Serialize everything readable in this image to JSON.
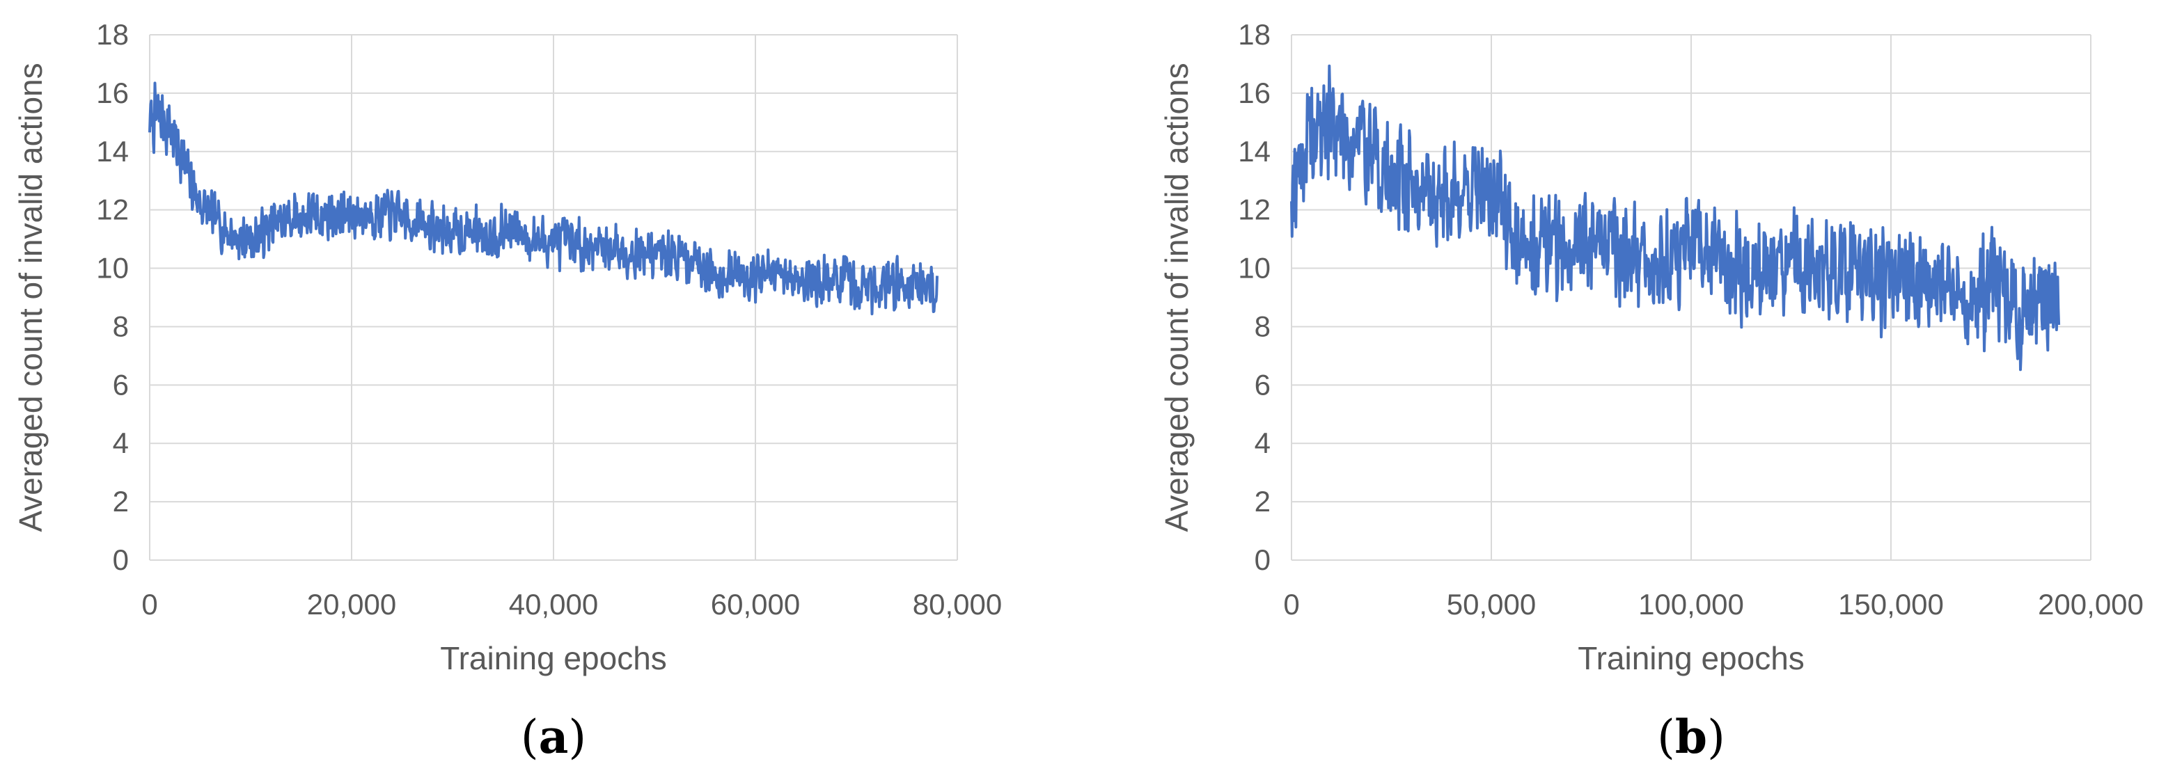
{
  "colors": {
    "series": "#4472C4",
    "grid": "#D9D9D9",
    "text": "#595959"
  },
  "chart_data": [
    {
      "type": "line",
      "panel_label": "a",
      "xlabel": "Training epochs",
      "ylabel": "Averaged count of invalid actions",
      "xlim": [
        0,
        80000
      ],
      "ylim": [
        0,
        18
      ],
      "x_ticks": [
        "0",
        "20,000",
        "40,000",
        "60,000",
        "80,000"
      ],
      "y_ticks": [
        "0",
        "2",
        "4",
        "6",
        "8",
        "10",
        "12",
        "14",
        "16",
        "18"
      ],
      "grid": true,
      "legend": "none",
      "series": [
        {
          "x": [
            0,
            1000,
            2000,
            3000,
            4000,
            5000,
            6000,
            7000,
            8000,
            9000,
            10000,
            12000,
            14000,
            16000,
            18000,
            20000,
            22000,
            24000,
            26000,
            28000,
            30000,
            32000,
            34000,
            36000,
            38000,
            40000,
            42000,
            44000,
            46000,
            48000,
            50000,
            52000,
            54000,
            56000,
            58000,
            60000,
            62000,
            64000,
            66000,
            68000,
            70000,
            72000,
            74000,
            76000,
            78000
          ],
          "y": [
            15.0,
            15.2,
            14.8,
            14.0,
            13.0,
            12.2,
            11.8,
            11.5,
            11.2,
            11.0,
            11.0,
            11.4,
            11.7,
            11.8,
            11.8,
            11.8,
            11.9,
            11.8,
            11.6,
            11.4,
            11.2,
            11.3,
            11.2,
            11.3,
            11.0,
            10.9,
            10.8,
            10.8,
            10.7,
            10.6,
            10.5,
            10.4,
            10.3,
            9.8,
            9.8,
            9.8,
            9.7,
            9.7,
            9.6,
            9.6,
            9.4,
            9.4,
            9.5,
            9.5,
            9.3
          ],
          "band": [
            1.2,
            1.4,
            1.3,
            1.2,
            1.1,
            1.0,
            1.0,
            1.0,
            1.0,
            1.0,
            1.0,
            1.0,
            1.0,
            1.0,
            1.0,
            1.0,
            1.0,
            1.0,
            1.0,
            1.0,
            1.0,
            1.0,
            1.0,
            1.0,
            1.0,
            1.0,
            1.0,
            1.0,
            1.0,
            1.0,
            1.0,
            1.0,
            1.0,
            1.0,
            1.0,
            1.0,
            1.0,
            1.0,
            1.0,
            1.0,
            1.1,
            1.1,
            1.1,
            1.1,
            1.0
          ]
        }
      ]
    },
    {
      "type": "line",
      "panel_label": "b",
      "xlabel": "Training epochs",
      "ylabel": "Averaged count of invalid actions",
      "xlim": [
        0,
        200000
      ],
      "ylim": [
        0,
        18
      ],
      "x_ticks": [
        "0",
        "50,000",
        "100,000",
        "150,000",
        "200,000"
      ],
      "y_ticks": [
        "0",
        "2",
        "4",
        "6",
        "8",
        "10",
        "12",
        "14",
        "16",
        "18"
      ],
      "grid": true,
      "legend": "none",
      "series": [
        {
          "x": [
            0,
            5000,
            10000,
            15000,
            20000,
            25000,
            30000,
            35000,
            40000,
            45000,
            50000,
            55000,
            60000,
            65000,
            70000,
            75000,
            80000,
            85000,
            90000,
            95000,
            100000,
            105000,
            110000,
            115000,
            120000,
            125000,
            130000,
            135000,
            140000,
            145000,
            150000,
            155000,
            160000,
            165000,
            170000,
            175000,
            180000,
            185000,
            190000,
            192000
          ],
          "y": [
            13.0,
            14.5,
            15.0,
            14.5,
            14.0,
            13.0,
            13.0,
            12.5,
            12.5,
            12.8,
            12.5,
            11.5,
            11.0,
            11.0,
            10.5,
            11.0,
            11.0,
            10.5,
            10.0,
            10.5,
            10.5,
            10.5,
            10.0,
            10.0,
            10.0,
            10.0,
            10.0,
            9.8,
            9.8,
            9.5,
            9.5,
            9.5,
            9.5,
            9.3,
            9.0,
            9.5,
            8.5,
            8.5,
            8.5,
            8.2
          ],
          "band": [
            2.5,
            2.5,
            2.5,
            2.5,
            2.2,
            2.2,
            2.0,
            2.0,
            2.0,
            2.0,
            2.0,
            2.2,
            2.2,
            2.5,
            2.5,
            2.2,
            2.2,
            2.2,
            2.2,
            2.2,
            2.2,
            2.2,
            2.2,
            2.2,
            2.2,
            2.2,
            2.2,
            2.2,
            2.2,
            2.2,
            2.2,
            2.2,
            2.2,
            2.2,
            2.2,
            2.4,
            2.4,
            2.3,
            2.2,
            2.0
          ]
        }
      ]
    }
  ]
}
